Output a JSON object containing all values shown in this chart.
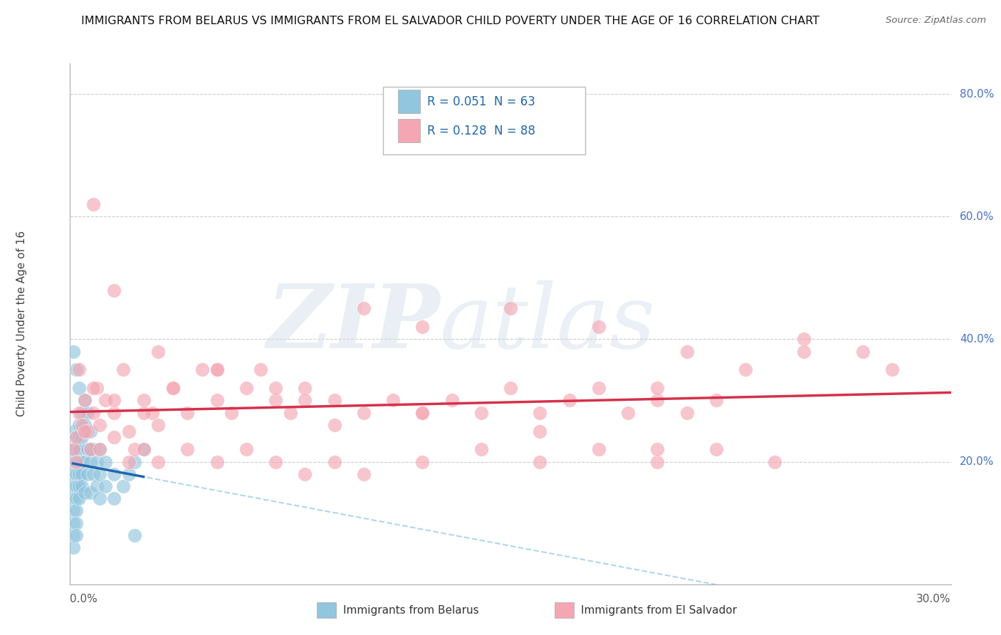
{
  "title": "IMMIGRANTS FROM BELARUS VS IMMIGRANTS FROM EL SALVADOR CHILD POVERTY UNDER THE AGE OF 16 CORRELATION CHART",
  "source": "Source: ZipAtlas.com",
  "ylabel": "Child Poverty Under the Age of 16",
  "color_belarus": "#92c5de",
  "color_belarus_line": "#2166ac",
  "color_salvador": "#f4a6b2",
  "color_salvador_line": "#d6304a",
  "color_dashed": "#92c5de",
  "legend_label1": "Immigrants from Belarus",
  "legend_label2": "Immigrants from El Salvador",
  "watermark_zip": "ZIP",
  "watermark_atlas": "atlas",
  "xmin": 0.0,
  "xmax": 0.3,
  "ymin": 0.0,
  "ymax": 0.85,
  "ytick_vals": [
    0.2,
    0.4,
    0.6,
    0.8
  ],
  "ytick_labels": [
    "20.0%",
    "40.0%",
    "60.0%",
    "80.0%"
  ],
  "xtick_left": "0.0%",
  "xtick_right": "30.0%",
  "belarus_x": [
    0.001,
    0.001,
    0.001,
    0.001,
    0.001,
    0.001,
    0.001,
    0.001,
    0.001,
    0.001,
    0.002,
    0.002,
    0.002,
    0.002,
    0.002,
    0.002,
    0.002,
    0.002,
    0.002,
    0.003,
    0.003,
    0.003,
    0.003,
    0.003,
    0.003,
    0.003,
    0.004,
    0.004,
    0.004,
    0.004,
    0.004,
    0.005,
    0.005,
    0.005,
    0.005,
    0.006,
    0.006,
    0.006,
    0.007,
    0.007,
    0.007,
    0.008,
    0.008,
    0.009,
    0.009,
    0.01,
    0.01,
    0.01,
    0.012,
    0.012,
    0.015,
    0.015,
    0.018,
    0.02,
    0.022,
    0.025,
    0.001,
    0.002,
    0.003,
    0.005,
    0.007,
    0.022
  ],
  "belarus_y": [
    0.22,
    0.2,
    0.18,
    0.16,
    0.14,
    0.12,
    0.1,
    0.08,
    0.06,
    0.25,
    0.24,
    0.22,
    0.2,
    0.18,
    0.16,
    0.14,
    0.12,
    0.1,
    0.08,
    0.26,
    0.24,
    0.22,
    0.2,
    0.18,
    0.16,
    0.14,
    0.28,
    0.24,
    0.2,
    0.18,
    0.16,
    0.3,
    0.25,
    0.2,
    0.15,
    0.28,
    0.22,
    0.18,
    0.25,
    0.2,
    0.15,
    0.22,
    0.18,
    0.2,
    0.16,
    0.22,
    0.18,
    0.14,
    0.2,
    0.16,
    0.18,
    0.14,
    0.16,
    0.18,
    0.2,
    0.22,
    0.38,
    0.35,
    0.32,
    0.26,
    0.22,
    0.08
  ],
  "salvador_x": [
    0.001,
    0.002,
    0.003,
    0.004,
    0.005,
    0.006,
    0.007,
    0.008,
    0.009,
    0.01,
    0.012,
    0.015,
    0.018,
    0.02,
    0.022,
    0.025,
    0.028,
    0.03,
    0.035,
    0.04,
    0.045,
    0.05,
    0.055,
    0.06,
    0.065,
    0.07,
    0.075,
    0.08,
    0.09,
    0.1,
    0.11,
    0.12,
    0.13,
    0.14,
    0.15,
    0.16,
    0.17,
    0.18,
    0.19,
    0.2,
    0.21,
    0.22,
    0.002,
    0.005,
    0.01,
    0.015,
    0.02,
    0.025,
    0.03,
    0.04,
    0.05,
    0.06,
    0.07,
    0.08,
    0.09,
    0.1,
    0.12,
    0.14,
    0.16,
    0.18,
    0.2,
    0.22,
    0.24,
    0.003,
    0.008,
    0.015,
    0.025,
    0.035,
    0.05,
    0.07,
    0.09,
    0.15,
    0.18,
    0.21,
    0.25,
    0.27,
    0.28,
    0.1,
    0.12,
    0.2,
    0.23,
    0.25,
    0.008,
    0.015,
    0.03,
    0.05,
    0.08,
    0.12,
    0.16,
    0.2
  ],
  "salvador_y": [
    0.22,
    0.24,
    0.28,
    0.26,
    0.3,
    0.25,
    0.22,
    0.28,
    0.32,
    0.26,
    0.3,
    0.28,
    0.35,
    0.25,
    0.22,
    0.3,
    0.28,
    0.26,
    0.32,
    0.28,
    0.35,
    0.3,
    0.28,
    0.32,
    0.35,
    0.3,
    0.28,
    0.32,
    0.26,
    0.28,
    0.3,
    0.28,
    0.3,
    0.28,
    0.32,
    0.28,
    0.3,
    0.32,
    0.28,
    0.3,
    0.28,
    0.3,
    0.2,
    0.25,
    0.22,
    0.24,
    0.2,
    0.22,
    0.2,
    0.22,
    0.2,
    0.22,
    0.2,
    0.18,
    0.2,
    0.18,
    0.2,
    0.22,
    0.2,
    0.22,
    0.2,
    0.22,
    0.2,
    0.35,
    0.32,
    0.3,
    0.28,
    0.32,
    0.35,
    0.32,
    0.3,
    0.45,
    0.42,
    0.38,
    0.4,
    0.38,
    0.35,
    0.45,
    0.42,
    0.32,
    0.35,
    0.38,
    0.62,
    0.48,
    0.38,
    0.35,
    0.3,
    0.28,
    0.25,
    0.22
  ]
}
